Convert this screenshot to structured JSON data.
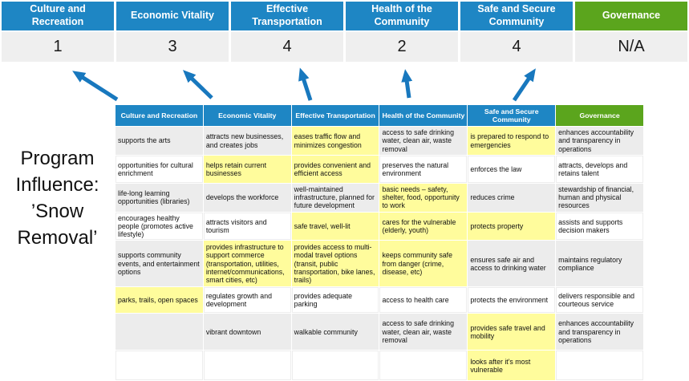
{
  "colors": {
    "header_blue": "#1E86C4",
    "header_green": "#5BA51D",
    "highlight_yellow": "#FFFC9C",
    "arrow_blue": "#1878BE",
    "score_bg": "#EFEFEF",
    "stripe_gray": "#ECECEC"
  },
  "summary": {
    "columns": [
      {
        "label": "Culture and Recreation",
        "score": "1",
        "color": "#1E86C4"
      },
      {
        "label": "Economic Vitality",
        "score": "3",
        "color": "#1E86C4"
      },
      {
        "label": "Effective Transportation",
        "score": "4",
        "color": "#1E86C4"
      },
      {
        "label": "Health of the Community",
        "score": "2",
        "color": "#1E86C4"
      },
      {
        "label": "Safe and Secure Community",
        "score": "4",
        "color": "#1E86C4"
      },
      {
        "label": "Governance",
        "score": "N/A",
        "color": "#5BA51D"
      }
    ]
  },
  "program_label": "Program Influence: ’Snow Removal’",
  "matrix": {
    "headers": [
      {
        "label": "Culture and Recreation",
        "color": "#1E86C4"
      },
      {
        "label": "Economic Vitality",
        "color": "#1E86C4"
      },
      {
        "label": "Effective Transportation",
        "color": "#1E86C4"
      },
      {
        "label": "Health of the Community",
        "color": "#1E86C4"
      },
      {
        "label": "Safe and Secure Community",
        "color": "#1E86C4"
      },
      {
        "label": "Governance",
        "color": "#5BA51D"
      }
    ],
    "rows": [
      [
        {
          "text": "supports the arts",
          "highlight": false
        },
        {
          "text": "attracts new businesses, and creates jobs",
          "highlight": false
        },
        {
          "text": "eases traffic flow and minimizes congestion",
          "highlight": true
        },
        {
          "text": "access to safe drinking water, clean air, waste removal",
          "highlight": false
        },
        {
          "text": "is prepared to respond to emergencies",
          "highlight": true
        },
        {
          "text": "enhances accountability and transparency in operations",
          "highlight": false
        }
      ],
      [
        {
          "text": "opportunities for cultural enrichment",
          "highlight": false
        },
        {
          "text": "helps retain current businesses",
          "highlight": true
        },
        {
          "text": "provides convenient and efficient access",
          "highlight": true
        },
        {
          "text": "preserves the natural environment",
          "highlight": false
        },
        {
          "text": "enforces the law",
          "highlight": false
        },
        {
          "text": "attracts, develops and retains talent",
          "highlight": false
        }
      ],
      [
        {
          "text": "life-long learning opportunities (libraries)",
          "highlight": false
        },
        {
          "text": "develops the workforce",
          "highlight": false
        },
        {
          "text": "well-maintained infrastructure, planned for future development",
          "highlight": false
        },
        {
          "text": "basic needs – safety, shelter, food, opportunity to work",
          "highlight": true
        },
        {
          "text": "reduces crime",
          "highlight": false
        },
        {
          "text": "stewardship of financial, human and physical resources",
          "highlight": false
        }
      ],
      [
        {
          "text": "encourages healthy people (promotes active lifestyle)",
          "highlight": false
        },
        {
          "text": "attracts visitors and tourism",
          "highlight": false
        },
        {
          "text": "safe travel, well-lit",
          "highlight": true
        },
        {
          "text": "cares for the vulnerable (elderly, youth)",
          "highlight": true
        },
        {
          "text": "protects property",
          "highlight": true
        },
        {
          "text": "assists and supports decision makers",
          "highlight": false
        }
      ],
      [
        {
          "text": "supports community events, and entertainment options",
          "highlight": false
        },
        {
          "text": "provides infrastructure to support commerce (transportation, utilities, internet/communications, smart cities, etc)",
          "highlight": true
        },
        {
          "text": "provides access to multi-modal travel options (transit, public transportation, bike lanes, trails)",
          "highlight": true
        },
        {
          "text": "keeps community safe from danger (crime, disease, etc)",
          "highlight": true
        },
        {
          "text": "ensures safe air and access to drinking water",
          "highlight": false
        },
        {
          "text": "maintains regulatory compliance",
          "highlight": false
        }
      ],
      [
        {
          "text": "parks, trails, open spaces",
          "highlight": true
        },
        {
          "text": "regulates growth and development",
          "highlight": false
        },
        {
          "text": "provides adequate parking",
          "highlight": false
        },
        {
          "text": "access to health care",
          "highlight": false
        },
        {
          "text": "protects the environment",
          "highlight": false
        },
        {
          "text": "delivers responsible and courteous service",
          "highlight": false
        }
      ],
      [
        {
          "text": "",
          "highlight": false
        },
        {
          "text": "vibrant downtown",
          "highlight": false
        },
        {
          "text": "walkable community",
          "highlight": false
        },
        {
          "text": "access to safe drinking water, clean air, waste removal",
          "highlight": false
        },
        {
          "text": "provides safe travel and mobility",
          "highlight": true
        },
        {
          "text": "enhances accountability and transparency in operations",
          "highlight": false
        }
      ],
      [
        {
          "text": "",
          "highlight": false
        },
        {
          "text": "",
          "highlight": false
        },
        {
          "text": "",
          "highlight": false
        },
        {
          "text": "",
          "highlight": false
        },
        {
          "text": "looks after it's most vulnerable",
          "highlight": true
        },
        {
          "text": "",
          "highlight": false
        }
      ]
    ]
  }
}
